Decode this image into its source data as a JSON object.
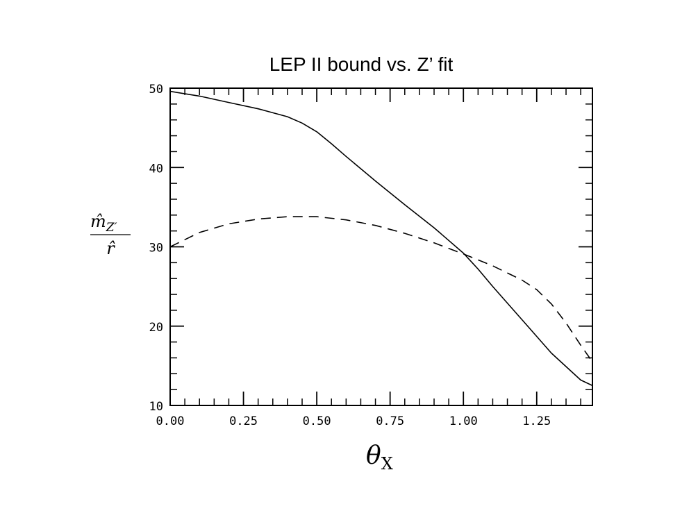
{
  "chart_data": {
    "type": "line",
    "title": "LEP II bound vs. Z’ fit",
    "xlabel": "θX",
    "xlabel_main": "θ",
    "xlabel_sub": "X",
    "ylabel": "m̂Z′ / r̂",
    "ylabel_numerator": "m̂",
    "ylabel_numerator_sub": "Z′",
    "ylabel_denominator": "r̂",
    "xlim": [
      0.0,
      1.44
    ],
    "ylim": [
      10,
      50
    ],
    "x_ticks": [
      0.0,
      0.25,
      0.5,
      0.75,
      1.0,
      1.25
    ],
    "x_tick_labels": [
      "0.00",
      "0.25",
      "0.50",
      "0.75",
      "1.00",
      "1.25"
    ],
    "y_ticks": [
      10,
      20,
      30,
      40,
      50
    ],
    "y_tick_labels": [
      "10",
      "20",
      "30",
      "40",
      "50"
    ],
    "grid": false,
    "series": [
      {
        "style": "solid",
        "x": [
          0.0,
          0.1,
          0.2,
          0.3,
          0.4,
          0.45,
          0.5,
          0.55,
          0.6,
          0.7,
          0.8,
          0.9,
          1.0,
          1.05,
          1.1,
          1.2,
          1.3,
          1.4,
          1.44
        ],
        "y": [
          49.6,
          49.0,
          48.2,
          47.4,
          46.4,
          45.6,
          44.5,
          43.0,
          41.4,
          38.3,
          35.3,
          32.4,
          29.2,
          27.2,
          25.0,
          20.8,
          16.6,
          13.2,
          12.5
        ]
      },
      {
        "style": "dashed",
        "x": [
          0.0,
          0.1,
          0.2,
          0.3,
          0.4,
          0.5,
          0.6,
          0.7,
          0.8,
          0.9,
          1.0,
          1.1,
          1.2,
          1.25,
          1.3,
          1.35,
          1.4,
          1.44
        ],
        "y": [
          30.0,
          31.8,
          32.9,
          33.5,
          33.8,
          33.8,
          33.4,
          32.7,
          31.7,
          30.5,
          29.1,
          27.6,
          25.8,
          24.6,
          22.8,
          20.4,
          17.6,
          15.5
        ]
      }
    ]
  }
}
